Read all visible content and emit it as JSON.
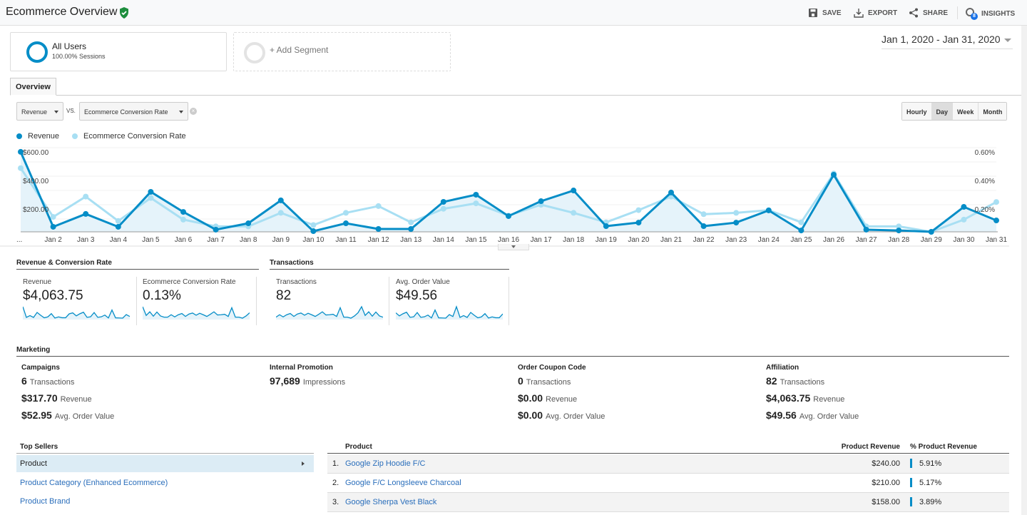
{
  "header": {
    "title": "Ecommerce Overview",
    "actions": [
      {
        "label": "SAVE",
        "icon": "save-icon"
      },
      {
        "label": "EXPORT",
        "icon": "export-icon"
      },
      {
        "label": "SHARE",
        "icon": "share-icon"
      },
      {
        "label": "INSIGHTS",
        "icon": "insights-icon",
        "badge": "8"
      }
    ]
  },
  "segments": {
    "all_users": {
      "name": "All Users",
      "detail": "100.00% Sessions"
    },
    "add": "+ Add Segment"
  },
  "date_range": "Jan 1, 2020 - Jan 31, 2020",
  "tabs": [
    "Overview"
  ],
  "metric_select": {
    "primary": "Revenue",
    "vs": "VS.",
    "secondary": "Ecommerce Conversion Rate"
  },
  "granularity": {
    "options": [
      "Hourly",
      "Day",
      "Week",
      "Month"
    ],
    "selected": "Day"
  },
  "colors": {
    "revenue": "#058dc7",
    "conversion": "#a8dff3",
    "fill": "#e5f3fa"
  },
  "chart_data": {
    "type": "line",
    "categories": [
      "Jan 1",
      "Jan 2",
      "Jan 3",
      "Jan 4",
      "Jan 5",
      "Jan 6",
      "Jan 7",
      "Jan 8",
      "Jan 9",
      "Jan 10",
      "Jan 11",
      "Jan 12",
      "Jan 13",
      "Jan 14",
      "Jan 15",
      "Jan 16",
      "Jan 17",
      "Jan 18",
      "Jan 19",
      "Jan 20",
      "Jan 21",
      "Jan 22",
      "Jan 23",
      "Jan 24",
      "Jan 25",
      "Jan 26",
      "Jan 27",
      "Jan 28",
      "Jan 29",
      "Jan 30",
      "Jan 31"
    ],
    "x_tick_labels": [
      "...",
      "Jan 2",
      "Jan 3",
      "Jan 4",
      "Jan 5",
      "Jan 6",
      "Jan 7",
      "Jan 8",
      "Jan 9",
      "Jan 10",
      "Jan 11",
      "Jan 12",
      "Jan 13",
      "Jan 14",
      "Jan 15",
      "Jan 16",
      "Jan 17",
      "Jan 18",
      "Jan 19",
      "Jan 20",
      "Jan 21",
      "Jan 22",
      "Jan 23",
      "Jan 24",
      "Jan 25",
      "Jan 26",
      "Jan 27",
      "Jan 28",
      "Jan 29",
      "Jan 30",
      "Jan 31"
    ],
    "series": [
      {
        "name": "Revenue",
        "axis": "left",
        "values": [
          590,
          37,
          132,
          37,
          295,
          147,
          16,
          63,
          232,
          5,
          63,
          21,
          21,
          221,
          274,
          116,
          226,
          305,
          42,
          68,
          290,
          42,
          68,
          158,
          10,
          421,
          16,
          10,
          0,
          184,
          84
        ]
      },
      {
        "name": "Ecommerce Conversion Rate",
        "axis": "right",
        "values": [
          0.47,
          0.11,
          0.26,
          0.08,
          0.25,
          0.09,
          0.04,
          0.04,
          0.14,
          0.05,
          0.14,
          0.19,
          0.07,
          0.17,
          0.21,
          0.12,
          0.2,
          0.14,
          0.07,
          0.16,
          0.26,
          0.13,
          0.14,
          0.16,
          0.07,
          0.43,
          0.04,
          0.04,
          0.0,
          0.09,
          0.22
        ]
      }
    ],
    "y_left": {
      "ticks": [
        "$200.00",
        "$400.00",
        "$600.00"
      ],
      "range": [
        0,
        600
      ]
    },
    "y_right": {
      "ticks": [
        "0.20%",
        "0.40%",
        "0.60%"
      ],
      "range": [
        0,
        0.6
      ]
    },
    "legend": "top-left",
    "grid": true
  },
  "sections": {
    "rev_conv": {
      "title": "Revenue & Conversion Rate",
      "metrics": [
        {
          "label": "Revenue",
          "value": "$4,063.75"
        },
        {
          "label": "Ecommerce Conversion Rate",
          "value": "0.13%"
        }
      ]
    },
    "transactions": {
      "title": "Transactions",
      "metrics": [
        {
          "label": "Transactions",
          "value": "82"
        },
        {
          "label": "Avg. Order Value",
          "value": "$49.56"
        }
      ]
    }
  },
  "marketing": {
    "title": "Marketing",
    "cols": [
      {
        "title": "Campaigns",
        "lines": [
          {
            "v": "6",
            "l": "Transactions"
          },
          {
            "v": "$317.70",
            "l": "Revenue"
          },
          {
            "v": "$52.95",
            "l": "Avg. Order Value"
          }
        ]
      },
      {
        "title": "Internal Promotion",
        "lines": [
          {
            "v": "97,689",
            "l": "Impressions"
          }
        ]
      },
      {
        "title": "Order Coupon Code",
        "lines": [
          {
            "v": "0",
            "l": "Transactions"
          },
          {
            "v": "$0.00",
            "l": "Revenue"
          },
          {
            "v": "$0.00",
            "l": "Avg. Order Value"
          }
        ]
      },
      {
        "title": "Affiliation",
        "lines": [
          {
            "v": "82",
            "l": "Transactions"
          },
          {
            "v": "$4,063.75",
            "l": "Revenue"
          },
          {
            "v": "$49.56",
            "l": "Avg. Order Value"
          }
        ]
      }
    ]
  },
  "top_sellers": {
    "title": "Top Sellers",
    "items": [
      "Product",
      "Product Category (Enhanced Ecommerce)",
      "Product Brand"
    ],
    "table": {
      "headers": [
        "Product",
        "Product Revenue",
        "% Product Revenue"
      ],
      "rows": [
        {
          "n": "1.",
          "name": "Google Zip Hoodie F/C",
          "rev": "$240.00",
          "pct": "5.91%",
          "frac": 0.0591
        },
        {
          "n": "2.",
          "name": "Google F/C Longsleeve Charcoal",
          "rev": "$210.00",
          "pct": "5.17%",
          "frac": 0.0517
        },
        {
          "n": "3.",
          "name": "Google Sherpa Vest Black",
          "rev": "$158.00",
          "pct": "3.89%",
          "frac": 0.0389
        }
      ]
    }
  }
}
